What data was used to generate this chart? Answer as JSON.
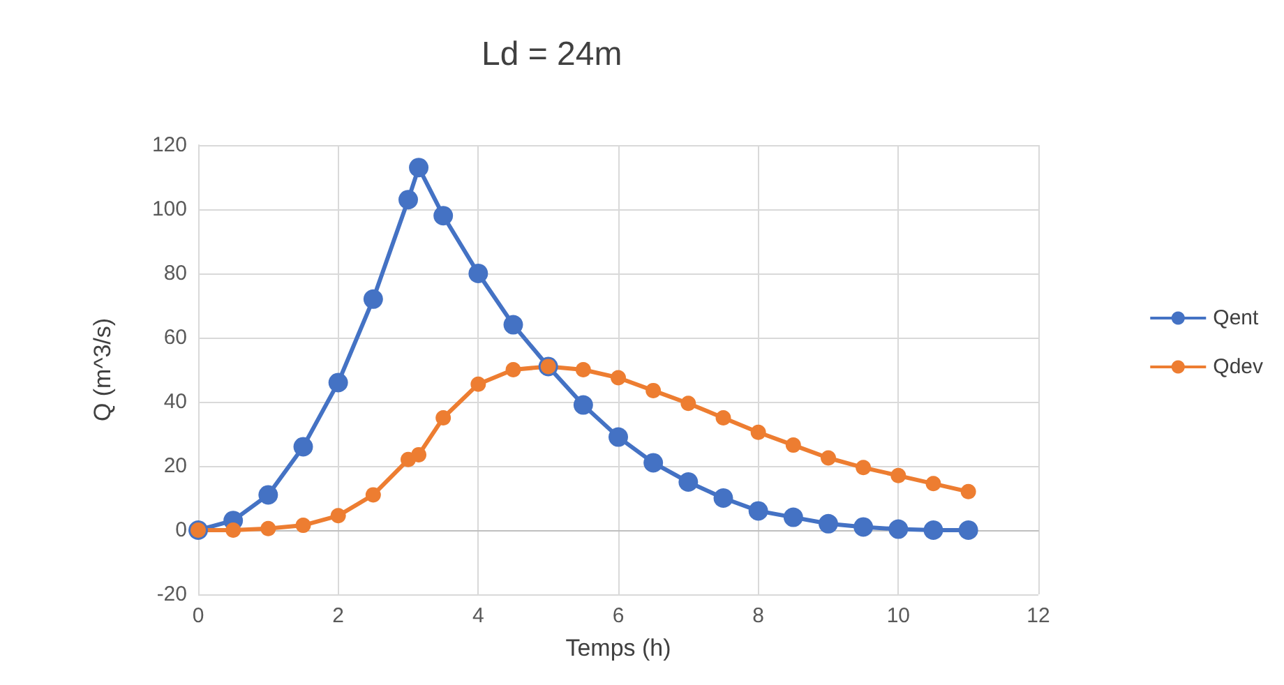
{
  "chart_data": {
    "type": "line",
    "title": "Ld = 24m",
    "xlabel": "Temps (h)",
    "ylabel": "Q (m^3/s)",
    "x": [
      0,
      0.5,
      1,
      1.5,
      2,
      2.5,
      3,
      3.15,
      3.5,
      4,
      4.5,
      5,
      5.5,
      6,
      6.5,
      7,
      7.5,
      8,
      8.5,
      9,
      9.5,
      10,
      10.5,
      11
    ],
    "series": [
      {
        "name": "Qent",
        "color": "#4472c4",
        "values": [
          0,
          3,
          11,
          26,
          46,
          72,
          103,
          113,
          98,
          80,
          64,
          51,
          39,
          29,
          21,
          15,
          10,
          6,
          4,
          2,
          1,
          0.3,
          0,
          0
        ]
      },
      {
        "name": "Qdev",
        "color": "#ed7d31",
        "values": [
          0,
          0,
          0.5,
          1.5,
          4.5,
          11,
          22,
          23.5,
          35,
          45.5,
          50,
          51,
          50,
          47.5,
          43.5,
          39.5,
          35,
          30.5,
          26.5,
          22.5,
          19.5,
          17,
          14.5,
          12
        ]
      }
    ],
    "xlim": [
      0,
      12
    ],
    "xticks": [
      0,
      2,
      4,
      6,
      8,
      10,
      12
    ],
    "ylim": [
      -20,
      120
    ],
    "yticks": [
      -20,
      0,
      20,
      40,
      60,
      80,
      100,
      120
    ],
    "grid": true,
    "legend": "right",
    "marker": "circle",
    "line_style": "solid"
  }
}
